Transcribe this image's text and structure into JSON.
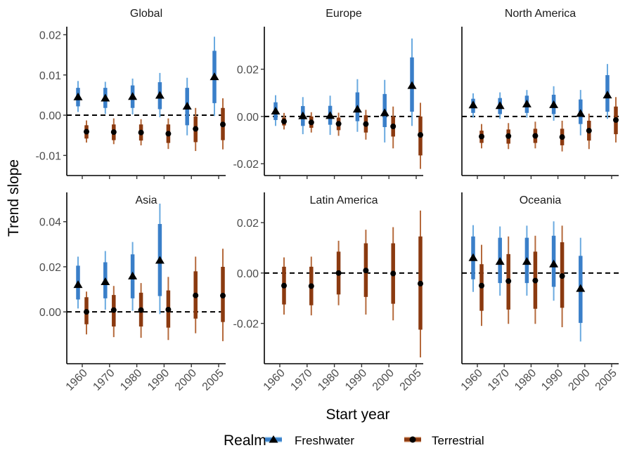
{
  "chart_data": {
    "type": "faceted-pointrange",
    "ylabel": "Trend slope",
    "xlabel": "Start year",
    "legend": {
      "title": "Realm",
      "placement": "bottom",
      "entries": [
        {
          "name": "Freshwater",
          "color": "#3a7fc9",
          "shape": "triangle"
        },
        {
          "name": "Terrestrial",
          "color": "#8b3a10",
          "shape": "circle"
        }
      ]
    },
    "x_categories": [
      "1960",
      "1970",
      "1980",
      "1990",
      "2000",
      "2005"
    ],
    "zero_line": "dashed",
    "colors": {
      "freshwater_inner": "#3a7fc9",
      "freshwater_outer": "#6aaae0",
      "terrestrial_inner": "#8b3a10",
      "terrestrial_outer": "#b56a3c",
      "point": "#000000"
    },
    "rows": [
      {
        "ylim": [
          -0.015,
          0.022
        ],
        "panels": [
          {
            "title": "Global",
            "yticks": [
              -0.01,
              0.0,
              0.01,
              0.02
            ],
            "ytick_labels": [
              "-0.01",
              "0.00",
              "0.01",
              "0.02"
            ],
            "series": [
              {
                "name": "Freshwater",
                "points": [
                  {
                    "x": "1960",
                    "est": 0.0045,
                    "lo50": 0.0022,
                    "hi50": 0.0068,
                    "lo95": 0.0008,
                    "hi95": 0.0085
                  },
                  {
                    "x": "1970",
                    "est": 0.0042,
                    "lo50": 0.0018,
                    "hi50": 0.0068,
                    "lo95": 0.0003,
                    "hi95": 0.0083
                  },
                  {
                    "x": "1980",
                    "est": 0.0046,
                    "lo50": 0.0018,
                    "hi50": 0.0074,
                    "lo95": 0.0002,
                    "hi95": 0.0091
                  },
                  {
                    "x": "1990",
                    "est": 0.0049,
                    "lo50": 0.0015,
                    "hi50": 0.0082,
                    "lo95": -0.0005,
                    "hi95": 0.0105
                  },
                  {
                    "x": "2000",
                    "est": 0.0022,
                    "lo50": -0.0025,
                    "hi50": 0.0068,
                    "lo95": -0.005,
                    "hi95": 0.0093
                  },
                  {
                    "x": "2005",
                    "est": 0.0095,
                    "lo50": 0.003,
                    "hi50": 0.016,
                    "lo95": -0.0002,
                    "hi95": 0.0195
                  }
                ]
              },
              {
                "name": "Terrestrial",
                "points": [
                  {
                    "x": "1960",
                    "est": -0.0041,
                    "lo50": -0.0058,
                    "hi50": -0.0025,
                    "lo95": -0.0068,
                    "hi95": -0.0013
                  },
                  {
                    "x": "1970",
                    "est": -0.0042,
                    "lo50": -0.0062,
                    "hi50": -0.0023,
                    "lo95": -0.0072,
                    "hi95": -0.0008
                  },
                  {
                    "x": "1980",
                    "est": -0.0043,
                    "lo50": -0.0063,
                    "hi50": -0.0023,
                    "lo95": -0.0075,
                    "hi95": -0.001
                  },
                  {
                    "x": "1990",
                    "est": -0.0046,
                    "lo50": -0.0069,
                    "hi50": -0.0023,
                    "lo95": -0.0084,
                    "hi95": -0.0008
                  },
                  {
                    "x": "2000",
                    "est": -0.0034,
                    "lo50": -0.0067,
                    "hi50": -0.0003,
                    "lo95": -0.0089,
                    "hi95": 0.0018
                  },
                  {
                    "x": "2005",
                    "est": -0.0023,
                    "lo50": -0.0062,
                    "hi50": 0.0018,
                    "lo95": -0.0085,
                    "hi95": 0.0042
                  }
                ]
              }
            ]
          },
          {
            "title": "Europe",
            "ylim": [
              -0.025,
              0.038
            ],
            "yticks": [
              -0.02,
              0.0,
              0.02
            ],
            "ytick_labels": [
              "-0.02",
              "0.00",
              "0.02"
            ],
            "series": [
              {
                "name": "Freshwater",
                "points": [
                  {
                    "x": "1960",
                    "est": 0.0022,
                    "lo50": -0.0015,
                    "hi50": 0.006,
                    "lo95": -0.004,
                    "hi95": 0.009
                  },
                  {
                    "x": "1970",
                    "est": 0.0002,
                    "lo50": -0.004,
                    "hi50": 0.0044,
                    "lo95": -0.0075,
                    "hi95": 0.0082
                  },
                  {
                    "x": "1980",
                    "est": 0.0003,
                    "lo50": -0.0035,
                    "hi50": 0.0045,
                    "lo95": -0.0078,
                    "hi95": 0.0088
                  },
                  {
                    "x": "1990",
                    "est": 0.003,
                    "lo50": -0.002,
                    "hi50": 0.0102,
                    "lo95": -0.0065,
                    "hi95": 0.0158
                  },
                  {
                    "x": "2000",
                    "est": 0.0015,
                    "lo50": -0.0045,
                    "hi50": 0.0095,
                    "lo95": -0.011,
                    "hi95": 0.0155
                  },
                  {
                    "x": "2005",
                    "est": 0.013,
                    "lo50": 0.002,
                    "hi50": 0.025,
                    "lo95": -0.004,
                    "hi95": 0.033
                  }
                ]
              },
              {
                "name": "Terrestrial",
                "points": [
                  {
                    "x": "1960",
                    "est": -0.0021,
                    "lo50": -0.0038,
                    "hi50": -0.0005,
                    "lo95": -0.0055,
                    "hi95": 0.0015
                  },
                  {
                    "x": "1970",
                    "est": -0.0025,
                    "lo50": -0.0048,
                    "hi50": 0.0,
                    "lo95": -0.0068,
                    "hi95": 0.0018
                  },
                  {
                    "x": "1980",
                    "est": -0.0031,
                    "lo50": -0.0058,
                    "hi50": -0.0005,
                    "lo95": -0.0082,
                    "hi95": 0.0016
                  },
                  {
                    "x": "1990",
                    "est": -0.0032,
                    "lo50": -0.0068,
                    "hi50": 0.0005,
                    "lo95": -0.0098,
                    "hi95": 0.0028
                  },
                  {
                    "x": "2000",
                    "est": -0.0042,
                    "lo50": -0.0085,
                    "hi50": 0.0,
                    "lo95": -0.0135,
                    "hi95": 0.0042
                  },
                  {
                    "x": "2005",
                    "est": -0.0078,
                    "lo50": -0.0165,
                    "hi50": 0.0,
                    "lo95": -0.0222,
                    "hi95": 0.0058
                  }
                ]
              }
            ]
          },
          {
            "title": "North America",
            "yticks": [],
            "ytick_labels": [],
            "ylim": [
              -0.025,
              0.038
            ],
            "series": [
              {
                "name": "Freshwater",
                "points": [
                  {
                    "x": "1960",
                    "est": 0.0048,
                    "lo50": 0.0015,
                    "hi50": 0.0075,
                    "lo95": -0.0005,
                    "hi95": 0.0098
                  },
                  {
                    "x": "1970",
                    "est": 0.0045,
                    "lo50": 0.001,
                    "hi50": 0.0078,
                    "lo95": -0.001,
                    "hi95": 0.0102
                  },
                  {
                    "x": "1980",
                    "est": 0.0052,
                    "lo50": 0.0015,
                    "hi50": 0.0088,
                    "lo95": -0.0005,
                    "hi95": 0.0112
                  },
                  {
                    "x": "1990",
                    "est": 0.0049,
                    "lo50": 0.001,
                    "hi50": 0.0092,
                    "lo95": -0.0018,
                    "hi95": 0.0128
                  },
                  {
                    "x": "2000",
                    "est": 0.0012,
                    "lo50": -0.0032,
                    "hi50": 0.0072,
                    "lo95": -0.008,
                    "hi95": 0.0112
                  },
                  {
                    "x": "2005",
                    "est": 0.009,
                    "lo50": 0.002,
                    "hi50": 0.0175,
                    "lo95": -0.001,
                    "hi95": 0.0222
                  }
                ]
              },
              {
                "name": "Terrestrial",
                "points": [
                  {
                    "x": "1960",
                    "est": -0.0085,
                    "lo50": -0.0112,
                    "hi50": -0.006,
                    "lo95": -0.0135,
                    "hi95": -0.0032
                  },
                  {
                    "x": "1970",
                    "est": -0.0083,
                    "lo50": -0.0115,
                    "hi50": -0.0055,
                    "lo95": -0.0138,
                    "hi95": -0.0028
                  },
                  {
                    "x": "1980",
                    "est": -0.0082,
                    "lo50": -0.0112,
                    "hi50": -0.0052,
                    "lo95": -0.0135,
                    "hi95": -0.0022
                  },
                  {
                    "x": "1990",
                    "est": -0.0087,
                    "lo50": -0.0122,
                    "hi50": -0.0052,
                    "lo95": -0.0148,
                    "hi95": -0.0018
                  },
                  {
                    "x": "2000",
                    "est": -0.006,
                    "lo50": -0.0102,
                    "hi50": -0.0018,
                    "lo95": -0.0138,
                    "hi95": 0.0012
                  },
                  {
                    "x": "2005",
                    "est": -0.0015,
                    "lo50": -0.0075,
                    "hi50": 0.0042,
                    "lo95": -0.011,
                    "hi95": 0.0082
                  }
                ]
              }
            ]
          }
        ]
      },
      {
        "ylim": [
          -0.023,
          0.053
        ],
        "panels": [
          {
            "title": "Asia",
            "yticks": [
              0.0,
              0.02,
              0.04
            ],
            "ytick_labels": [
              "0.00",
              "0.02",
              "0.04"
            ],
            "series": [
              {
                "name": "Freshwater",
                "points": [
                  {
                    "x": "1960",
                    "est": 0.012,
                    "lo50": 0.0055,
                    "hi50": 0.0205,
                    "lo95": 0.0015,
                    "hi95": 0.0245
                  },
                  {
                    "x": "1970",
                    "est": 0.0133,
                    "lo50": 0.006,
                    "hi50": 0.022,
                    "lo95": 0.001,
                    "hi95": 0.027
                  },
                  {
                    "x": "1980",
                    "est": 0.0158,
                    "lo50": 0.006,
                    "hi50": 0.0255,
                    "lo95": 0.0005,
                    "hi95": 0.031
                  },
                  {
                    "x": "1990",
                    "est": 0.0228,
                    "lo50": 0.007,
                    "hi50": 0.039,
                    "lo95": -0.001,
                    "hi95": 0.048
                  }
                ]
              },
              {
                "name": "Terrestrial",
                "points": [
                  {
                    "x": "1960",
                    "est": 0.0,
                    "lo50": -0.0055,
                    "hi50": 0.0065,
                    "lo95": -0.01,
                    "hi95": 0.009
                  },
                  {
                    "x": "1970",
                    "est": 0.0008,
                    "lo50": -0.0065,
                    "hi50": 0.0075,
                    "lo95": -0.0112,
                    "hi95": 0.0115
                  },
                  {
                    "x": "1980",
                    "est": 0.0008,
                    "lo50": -0.0065,
                    "hi50": 0.0085,
                    "lo95": -0.0115,
                    "hi95": 0.0128
                  },
                  {
                    "x": "1990",
                    "est": 0.001,
                    "lo50": -0.007,
                    "hi50": 0.0095,
                    "lo95": -0.0125,
                    "hi95": 0.0155
                  },
                  {
                    "x": "2000",
                    "est": 0.0073,
                    "lo50": -0.003,
                    "hi50": 0.018,
                    "lo95": -0.0095,
                    "hi95": 0.0245
                  },
                  {
                    "x": "2005",
                    "est": 0.0072,
                    "lo50": -0.0045,
                    "hi50": 0.02,
                    "lo95": -0.013,
                    "hi95": 0.028
                  }
                ]
              }
            ]
          },
          {
            "title": "Latin America",
            "ylim": [
              -0.036,
              0.032
            ],
            "yticks": [
              -0.02,
              0.0,
              0.02
            ],
            "ytick_labels": [
              "-0.02",
              "0.00",
              "0.02"
            ],
            "series": [
              {
                "name": "Terrestrial",
                "points": [
                  {
                    "x": "1960",
                    "est": -0.005,
                    "lo50": -0.0125,
                    "hi50": 0.0025,
                    "lo95": -0.0165,
                    "hi95": 0.0062
                  },
                  {
                    "x": "1970",
                    "est": -0.0052,
                    "lo50": -0.0128,
                    "hi50": 0.0025,
                    "lo95": -0.0168,
                    "hi95": 0.0065
                  },
                  {
                    "x": "1980",
                    "est": 0.0,
                    "lo50": -0.0085,
                    "hi50": 0.0085,
                    "lo95": -0.0128,
                    "hi95": 0.0128
                  },
                  {
                    "x": "1990",
                    "est": 0.001,
                    "lo50": -0.0095,
                    "hi50": 0.0118,
                    "lo95": -0.0165,
                    "hi95": 0.0172
                  },
                  {
                    "x": "2000",
                    "est": -0.0002,
                    "lo50": -0.0122,
                    "hi50": 0.0118,
                    "lo95": -0.0188,
                    "hi95": 0.0182
                  },
                  {
                    "x": "2005",
                    "est": -0.0042,
                    "lo50": -0.0225,
                    "hi50": 0.0145,
                    "lo95": -0.0335,
                    "hi95": 0.0248
                  }
                ]
              }
            ]
          },
          {
            "title": "Oceania",
            "yticks": [],
            "ytick_labels": [],
            "ylim": [
              -0.036,
              0.032
            ],
            "series": [
              {
                "name": "Freshwater",
                "points": [
                  {
                    "x": "1960",
                    "est": 0.006,
                    "lo50": -0.0025,
                    "hi50": 0.0145,
                    "lo95": -0.0075,
                    "hi95": 0.019
                  },
                  {
                    "x": "1970",
                    "est": 0.0045,
                    "lo50": -0.004,
                    "hi50": 0.014,
                    "lo95": -0.009,
                    "hi95": 0.0185
                  },
                  {
                    "x": "1980",
                    "est": 0.0045,
                    "lo50": -0.004,
                    "hi50": 0.014,
                    "lo95": -0.009,
                    "hi95": 0.0188
                  },
                  {
                    "x": "1990",
                    "est": 0.0035,
                    "lo50": -0.0055,
                    "hi50": 0.0148,
                    "lo95": -0.011,
                    "hi95": 0.0205
                  },
                  {
                    "x": "2000",
                    "est": -0.0062,
                    "lo50": -0.0198,
                    "hi50": 0.0068,
                    "lo95": -0.0272,
                    "hi95": 0.014
                  }
                ]
              },
              {
                "name": "Terrestrial",
                "points": [
                  {
                    "x": "1960",
                    "est": -0.005,
                    "lo50": -0.015,
                    "hi50": 0.0035,
                    "lo95": -0.021,
                    "hi95": 0.0112
                  },
                  {
                    "x": "1970",
                    "est": -0.0032,
                    "lo50": -0.0145,
                    "hi50": 0.0075,
                    "lo95": -0.0202,
                    "hi95": 0.0145
                  },
                  {
                    "x": "1980",
                    "est": -0.003,
                    "lo50": -0.0142,
                    "hi50": 0.0085,
                    "lo95": -0.0202,
                    "hi95": 0.0148
                  },
                  {
                    "x": "1990",
                    "est": -0.0012,
                    "lo50": -0.0138,
                    "hi50": 0.0122,
                    "lo95": -0.0215,
                    "hi95": 0.0188
                  }
                ]
              }
            ]
          }
        ]
      }
    ]
  }
}
